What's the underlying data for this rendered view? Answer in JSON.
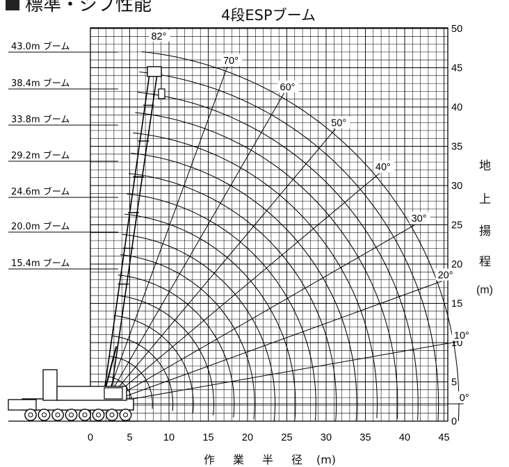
{
  "header": {
    "section_heading": "標準・ジブ性能",
    "title": "4段ESPブーム"
  },
  "y_axis": {
    "label_chars": [
      "地",
      "上",
      "揚",
      "程"
    ],
    "unit": "(m)",
    "ticks": [
      "0",
      "5",
      "10",
      "15",
      "20",
      "25",
      "30",
      "35",
      "40",
      "45",
      "50"
    ]
  },
  "x_axis": {
    "label_chars": [
      "作",
      "業",
      "半",
      "径"
    ],
    "unit": "(m)",
    "ticks": [
      "0",
      "5",
      "10",
      "15",
      "20",
      "25",
      "30",
      "35",
      "40",
      "45"
    ]
  },
  "boom_lengths": [
    {
      "label": "43.0m ブーム",
      "length": 43.0
    },
    {
      "label": "38.4m ブーム",
      "length": 38.4
    },
    {
      "label": "33.8m ブーム",
      "length": 33.8
    },
    {
      "label": "29.2m ブーム",
      "length": 29.2
    },
    {
      "label": "24.6m ブーム",
      "length": 24.6
    },
    {
      "label": "20.0m ブーム",
      "length": 20.0
    },
    {
      "label": "15.4m ブーム",
      "length": 15.4
    }
  ],
  "angle_lines": [
    {
      "label": "82°",
      "deg": 82
    },
    {
      "label": "70°",
      "deg": 70
    },
    {
      "label": "60°",
      "deg": 60
    },
    {
      "label": "50°",
      "deg": 50
    },
    {
      "label": "40°",
      "deg": 40
    },
    {
      "label": "30°",
      "deg": 30
    },
    {
      "label": "20°",
      "deg": 20
    },
    {
      "label": "10°",
      "deg": 10
    },
    {
      "label": "0°",
      "deg": 0
    }
  ]
}
